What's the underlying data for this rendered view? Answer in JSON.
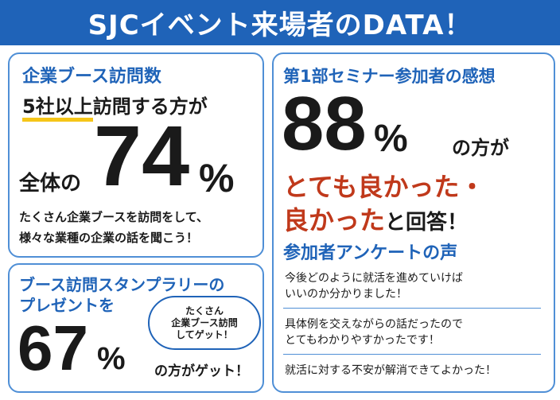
{
  "header": {
    "title": "SJCイベント来場者のDATA！"
  },
  "booth_visits": {
    "title": "企業ブース訪問数",
    "line1_highlight": "5社以上",
    "line1_rest": "訪問する方が",
    "prefix": "全体の",
    "number": "74",
    "percent": "%",
    "desc_line1": "たくさん企業ブースを訪問をして、",
    "desc_line2": "様々な業種の企業の話を聞こう！"
  },
  "stamp_rally": {
    "title_line1": "ブース訪問スタンプラリーの",
    "title_line2": "プレゼントを",
    "number": "67",
    "percent": "%",
    "suffix": "の方がゲット！",
    "bubble_line1": "たくさん",
    "bubble_line2": "企業ブース訪問",
    "bubble_line3": "してゲット！"
  },
  "seminar": {
    "title": "第1部セミナー参加者の感想",
    "number": "88",
    "percent": "%",
    "suffix": "の方が",
    "red_line1": "とても良かった・",
    "red_line2": "良かった",
    "line2_rest": "と回答！",
    "voice_title": "参加者アンケートの声",
    "comments": [
      {
        "line1": "今後どのように就活を進めていけば",
        "line2": "いいのか分かりました！"
      },
      {
        "line1": "具体例を交えながらの話だったので",
        "line2": "とてもわかりやすかったです！"
      },
      {
        "line1": "就活に対する不安が解消できてよかった！",
        "line2": ""
      }
    ]
  },
  "colors": {
    "blue": "#1f63b8",
    "border": "#4f8fd6",
    "red": "#c0391b",
    "yellow": "#f5c518"
  }
}
